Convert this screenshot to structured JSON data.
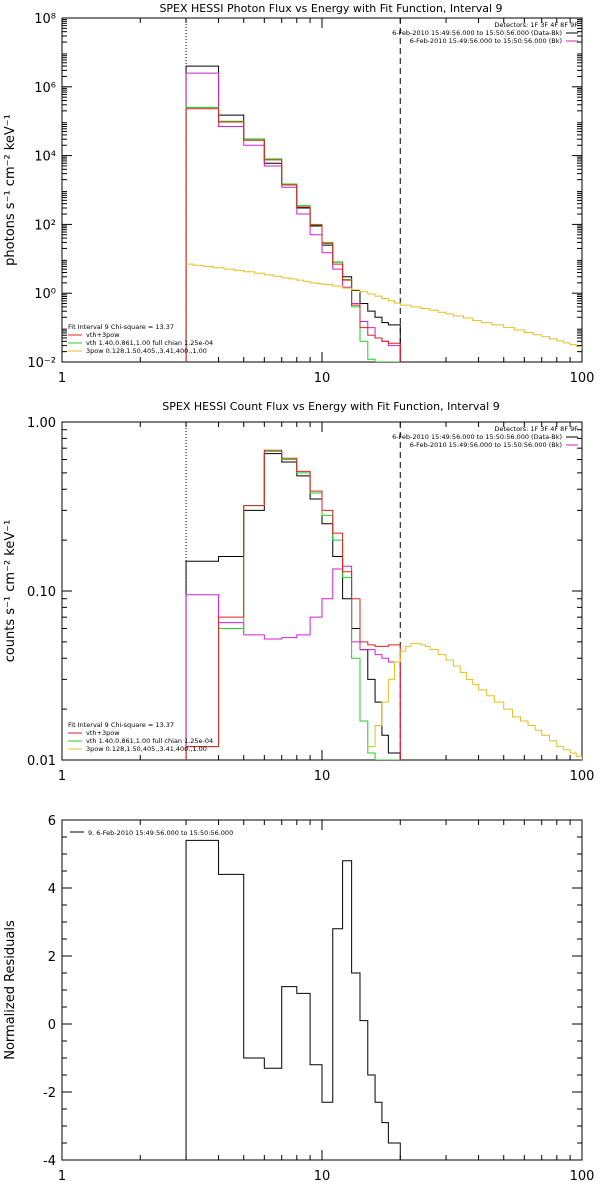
{
  "colors": {
    "black": "#000000",
    "red": "#e02020",
    "magenta": "#d020d0",
    "green": "#20d020",
    "gold": "#e0c020"
  },
  "chart_data": [
    {
      "type": "line",
      "title": "SPEX HESSI Photon Flux vs Energy with Fit Function, Interval 9",
      "xlabel": "",
      "ylabel": "photons s⁻¹ cm⁻² keV⁻¹",
      "xscale": "log",
      "yscale": "log",
      "xlim": [
        1,
        100
      ],
      "ylim": [
        0.01,
        100000000
      ],
      "x_ticks": [
        1,
        10,
        100
      ],
      "x_tick_labels": [
        "1",
        "10",
        "100"
      ],
      "y_ticks": [
        0.01,
        1,
        100,
        10000,
        1000000,
        100000000
      ],
      "y_tick_labels": [
        "10⁻²",
        "10⁰",
        "10²",
        "10⁴",
        "10⁶",
        "10⁸"
      ],
      "energy_edges": [
        3,
        4,
        5,
        6,
        7,
        8,
        9,
        10,
        11,
        12,
        13,
        14,
        15,
        16,
        17,
        18,
        20
      ],
      "detectors_text": "Detectors: 1F 3F 4F 8F 9F",
      "legend_top": [
        {
          "text": "6-Feb-2010 15:49:56.000 to 15:50:56.000 (Data-Bk)",
          "color": "black"
        },
        {
          "text": "6-Feb-2010 15:49:56.000 to 15:50:56.000 (Bk)",
          "color": "magenta"
        }
      ],
      "fit_legend": [
        {
          "text": "Fit Interval 9    Chi-square = 13.37",
          "color": "black"
        },
        {
          "text": "vth+3pow",
          "color": "red"
        },
        {
          "text": "vth 1.40,0.861,1.00   full chian 1.25e-04",
          "color": "green"
        },
        {
          "text": "3pow 0.128,1.50,405.,3.41,400.,1.00",
          "color": "gold"
        }
      ],
      "series": [
        {
          "color": "black",
          "values": [
            4000000,
            150000,
            30000,
            6000,
            1500,
            300,
            90,
            25,
            8,
            3,
            1.2,
            0.5,
            0.3,
            0.2,
            0.14,
            0.12
          ]
        },
        {
          "color": "magenta",
          "values": [
            2500000,
            70000,
            20000,
            5000,
            1200,
            200,
            50,
            15,
            5,
            1.5,
            0.5,
            0.15,
            0.1,
            0.05,
            0.04,
            0.03
          ]
        },
        {
          "color": "green",
          "values": [
            250000,
            100000,
            30000,
            8000,
            1500,
            350,
            100,
            30,
            8,
            2.5,
            0.4,
            0.04,
            0.012,
            0.005,
            0.005,
            0.005
          ]
        },
        {
          "color": "red",
          "values": [
            230000,
            95000,
            28000,
            7500,
            1400,
            320,
            95,
            28,
            7,
            2.4,
            0.45,
            0.1,
            0.06,
            0.05,
            0.04,
            0.035
          ]
        },
        {
          "color": "gold",
          "x": [
            3,
            3.2,
            3.5,
            3.8,
            4.2,
            4.6,
            5,
            5.5,
            6,
            6.5,
            7,
            7.5,
            8,
            8.5,
            9,
            9.5,
            10,
            11,
            12,
            13,
            14,
            15,
            16,
            17,
            18,
            19,
            20,
            22,
            24,
            26,
            28,
            30,
            32,
            35,
            38,
            41,
            45,
            50,
            55,
            60,
            65,
            70,
            75,
            80,
            85,
            90,
            95,
            100
          ],
          "values": [
            7,
            6.5,
            6,
            5.5,
            5,
            4.6,
            4.2,
            3.8,
            3.4,
            3.1,
            2.8,
            2.6,
            2.4,
            2.2,
            2,
            1.9,
            1.8,
            1.6,
            1.4,
            1.25,
            1.1,
            0.95,
            0.82,
            0.7,
            0.6,
            0.52,
            0.45,
            0.4,
            0.36,
            0.32,
            0.28,
            0.25,
            0.22,
            0.19,
            0.16,
            0.14,
            0.12,
            0.1,
            0.085,
            0.072,
            0.062,
            0.054,
            0.047,
            0.041,
            0.036,
            0.032,
            0.028,
            0.025
          ]
        }
      ]
    },
    {
      "type": "line",
      "title": "SPEX HESSI Count Flux vs Energy with Fit Function, Interval 9",
      "xlabel": "",
      "ylabel": "counts s⁻¹ cm⁻² keV⁻¹",
      "xscale": "log",
      "yscale": "log",
      "xlim": [
        1,
        100
      ],
      "ylim": [
        0.01,
        1.0
      ],
      "x_ticks": [
        1,
        10,
        100
      ],
      "x_tick_labels": [
        "1",
        "10",
        "100"
      ],
      "y_ticks": [
        0.01,
        0.1,
        1.0
      ],
      "y_tick_labels": [
        "0.01",
        "0.10",
        "1.00"
      ],
      "energy_edges": [
        3,
        4,
        5,
        6,
        7,
        8,
        9,
        10,
        11,
        12,
        13,
        14,
        15,
        16,
        17,
        18,
        20
      ],
      "detectors_text": "Detectors: 1F 3F 4F 8F 9F",
      "legend_top": [
        {
          "text": "6-Feb-2010 15:49:56.000 to 15:50:56.000 (Data-Bk)",
          "color": "black"
        },
        {
          "text": "6-Feb-2010 15:49:56.000 to 15:50:56.000 (Bk)",
          "color": "magenta"
        }
      ],
      "fit_legend": [
        {
          "text": "Fit Interval 9    Chi-square = 13.37",
          "color": "black"
        },
        {
          "text": "vth+3pow",
          "color": "red"
        },
        {
          "text": "vth 1.40,0.861,1.00   full chian 1.25e-04",
          "color": "green"
        },
        {
          "text": "3pow 0.128,1.50,405.,3.41,400.,1.00",
          "color": "gold"
        }
      ],
      "series": [
        {
          "color": "black",
          "values": [
            0.15,
            0.16,
            0.3,
            0.65,
            0.58,
            0.48,
            0.35,
            0.25,
            0.16,
            0.09,
            0.06,
            0.045,
            0.03,
            0.022,
            0.014,
            0.011
          ]
        },
        {
          "color": "magenta",
          "values": [
            0.095,
            0.065,
            0.055,
            0.052,
            0.053,
            0.055,
            0.07,
            0.09,
            0.135,
            0.14,
            0.05,
            0.045,
            0.045,
            0.042,
            0.04,
            0.038
          ]
        },
        {
          "color": "green",
          "values": [
            0.012,
            0.06,
            0.32,
            0.67,
            0.6,
            0.5,
            0.38,
            0.28,
            0.2,
            0.12,
            0.04,
            0.017,
            0.011,
            0.01,
            0.01,
            0.01
          ]
        },
        {
          "color": "red",
          "values": [
            0.012,
            0.07,
            0.32,
            0.68,
            0.61,
            0.51,
            0.39,
            0.3,
            0.22,
            0.13,
            0.09,
            0.05,
            0.048,
            0.047,
            0.047,
            0.048
          ]
        },
        {
          "color": "gold",
          "x": [
            15,
            16,
            17,
            18,
            19,
            20,
            21,
            22,
            23,
            24,
            25,
            26,
            28,
            30,
            32,
            34,
            36,
            38,
            40,
            43,
            46,
            50,
            54,
            58,
            62,
            66,
            70,
            75,
            80,
            85,
            90,
            95,
            100
          ],
          "values": [
            0.012,
            0.016,
            0.022,
            0.03,
            0.038,
            0.044,
            0.047,
            0.049,
            0.049,
            0.048,
            0.047,
            0.045,
            0.042,
            0.039,
            0.036,
            0.033,
            0.03,
            0.028,
            0.026,
            0.024,
            0.022,
            0.02,
            0.018,
            0.017,
            0.016,
            0.015,
            0.014,
            0.013,
            0.012,
            0.0115,
            0.011,
            0.0105,
            0.01
          ]
        }
      ]
    },
    {
      "type": "line",
      "title": "",
      "xlabel": "",
      "ylabel": "Normalized Residuals",
      "xscale": "log",
      "yscale": "linear",
      "xlim": [
        1,
        100
      ],
      "ylim": [
        -4,
        6
      ],
      "x_ticks": [
        1,
        10,
        100
      ],
      "x_tick_labels": [
        "1",
        "10",
        "100"
      ],
      "y_ticks": [
        -4,
        -2,
        0,
        2,
        4,
        6
      ],
      "y_tick_labels": [
        "-4",
        "-2",
        "0",
        "2",
        "4",
        "6"
      ],
      "energy_edges": [
        3,
        4,
        5,
        6,
        7,
        8,
        9,
        10,
        11,
        12,
        13,
        14,
        15,
        16,
        17,
        18,
        20
      ],
      "legend_top": [
        {
          "text": "9.  6-Feb-2010 15:49:56.000 to 15:50:56.000",
          "color": "black"
        }
      ],
      "series": [
        {
          "color": "black",
          "values": [
            5.4,
            4.4,
            -1.0,
            -1.3,
            1.1,
            0.9,
            -1.2,
            -2.3,
            2.8,
            4.8,
            1.5,
            0.1,
            -1.5,
            -2.3,
            -2.9,
            -3.5
          ]
        }
      ]
    }
  ]
}
